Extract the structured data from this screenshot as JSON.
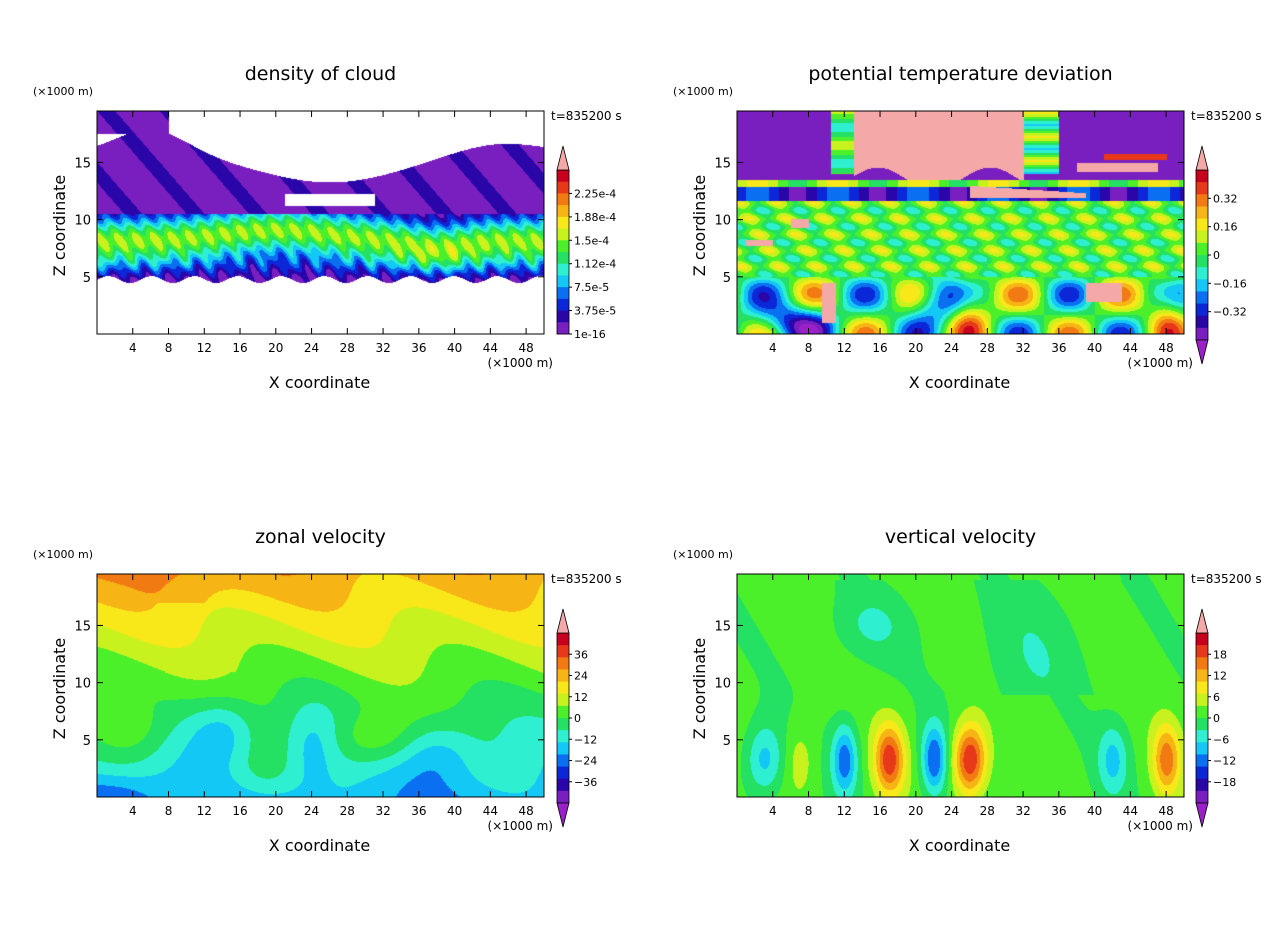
{
  "colorbar_palette": [
    "#7a1fbf",
    "#2a06a8",
    "#0b27d8",
    "#0a6ff0",
    "#14c8f5",
    "#2ef0d0",
    "#24e063",
    "#4cf02a",
    "#c8f21e",
    "#f8e81a",
    "#f6b415",
    "#f27a12",
    "#e8381a",
    "#c8001e"
  ],
  "cap_colors": {
    "top": "#f5a8a8",
    "bottom": "#9a20c8"
  },
  "chart_data": [
    {
      "type": "heatmap",
      "title": "density of cloud",
      "xlabel": "X coordinate",
      "ylabel": "Z coordinate",
      "x_unit": "(×1000 m)",
      "y_unit": "(×1000 m)",
      "time_label": "t=835200 s",
      "xlim": [
        0,
        50
      ],
      "ylim": [
        0,
        19.5
      ],
      "xticks": [
        4,
        8,
        12,
        16,
        20,
        24,
        28,
        32,
        36,
        40,
        44,
        48
      ],
      "yticks": [
        5,
        10,
        15
      ],
      "colorbar": {
        "labels": [
          "2.25e-4",
          "1.88e-4",
          "1.5e-4",
          "1.12e-4",
          "7.5e-5",
          "3.75e-5",
          "1e-16"
        ],
        "top_arrow": true,
        "bottom_arrow": false
      }
    },
    {
      "type": "heatmap",
      "title": "potential temperature deviation",
      "xlabel": "X coordinate",
      "ylabel": "Z coordinate",
      "x_unit": "(×1000 m)",
      "y_unit": "(×1000 m)",
      "time_label": "t=835200 s",
      "xlim": [
        0,
        50
      ],
      "ylim": [
        0,
        19.5
      ],
      "xticks": [
        4,
        8,
        12,
        16,
        20,
        24,
        28,
        32,
        36,
        40,
        44,
        48
      ],
      "yticks": [
        5,
        10,
        15
      ],
      "colorbar": {
        "labels": [
          "0.32",
          "0.16",
          "0",
          "−0.16",
          "−0.32"
        ],
        "top_arrow": true,
        "bottom_arrow": true
      }
    },
    {
      "type": "heatmap",
      "title": "zonal velocity",
      "xlabel": "X coordinate",
      "ylabel": "Z coordinate",
      "x_unit": "(×1000 m)",
      "y_unit": "(×1000 m)",
      "time_label": "t=835200 s",
      "xlim": [
        0,
        50
      ],
      "ylim": [
        0,
        19.5
      ],
      "xticks": [
        4,
        8,
        12,
        16,
        20,
        24,
        28,
        32,
        36,
        40,
        44,
        48
      ],
      "yticks": [
        5,
        10,
        15
      ],
      "colorbar": {
        "labels": [
          "36",
          "24",
          "12",
          "0",
          "−12",
          "−24",
          "−36"
        ],
        "top_arrow": true,
        "bottom_arrow": true
      }
    },
    {
      "type": "heatmap",
      "title": "vertical velocity",
      "xlabel": "X coordinate",
      "ylabel": "Z coordinate",
      "x_unit": "(×1000 m)",
      "y_unit": "(×1000 m)",
      "time_label": "t=835200 s",
      "xlim": [
        0,
        50
      ],
      "ylim": [
        0,
        19.5
      ],
      "xticks": [
        4,
        8,
        12,
        16,
        20,
        24,
        28,
        32,
        36,
        40,
        44,
        48
      ],
      "yticks": [
        5,
        10,
        15
      ],
      "colorbar": {
        "labels": [
          "18",
          "12",
          "6",
          "0",
          "−6",
          "−12",
          "−18"
        ],
        "top_arrow": true,
        "bottom_arrow": true
      }
    }
  ]
}
